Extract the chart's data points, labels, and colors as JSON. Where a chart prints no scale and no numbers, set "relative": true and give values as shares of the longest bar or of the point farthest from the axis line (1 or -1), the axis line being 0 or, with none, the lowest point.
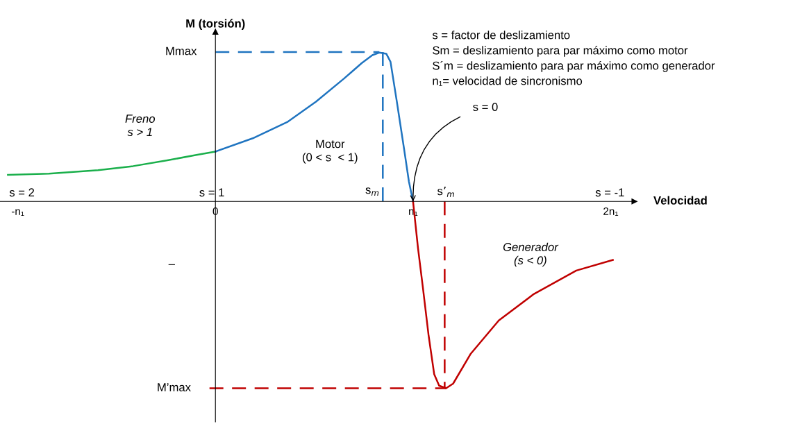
{
  "chart_data": {
    "type": "line",
    "relative": true,
    "title": "M (torsión)",
    "xlabel": "Velocidad",
    "xlim": [
      -1.09,
      2.12
    ],
    "xticks": [
      {
        "value": -1,
        "label": "-n₁"
      },
      0,
      {
        "value": 1,
        "label": "n₁"
      },
      {
        "value": 2,
        "label": "2n₁"
      }
    ],
    "tick_labels": "x",
    "marker": "none",
    "series": [
      {
        "color": "#1aaf4b",
        "line_style": "solid",
        "x": [
          -1.05,
          -0.843,
          -0.594,
          -0.416,
          -0.238,
          -0.096,
          0
        ],
        "values": [
          0.142,
          0.149,
          0.167,
          0.189,
          0.221,
          0.249,
          0.267
        ]
      },
      {
        "color": "#1f74c0",
        "line_style": "solid",
        "x": [
          0,
          0.189,
          0.367,
          0.509,
          0.651,
          0.74,
          0.794,
          0.829,
          0.865,
          0.886,
          0.918,
          0.954,
          0.979,
          1.0
        ],
        "values": [
          0.267,
          0.338,
          0.427,
          0.534,
          0.658,
          0.74,
          0.783,
          0.797,
          0.79,
          0.747,
          0.534,
          0.285,
          0.107,
          0
        ]
      },
      {
        "color": "#c00000",
        "line_style": "solid",
        "x": [
          1.0,
          1.025,
          1.05,
          1.078,
          1.107,
          1.132,
          1.167,
          1.203,
          1.292,
          1.434,
          1.612,
          1.826,
          2.011
        ],
        "values": [
          0,
          -0.249,
          -0.463,
          -0.712,
          -0.925,
          -0.986,
          -1.0,
          -0.975,
          -0.815,
          -0.637,
          -0.495,
          -0.37,
          -0.313
        ]
      },
      {
        "color": "#1f74c0",
        "line_style": "dashed",
        "x": [
          0,
          0.829
        ],
        "values": [
          0.8,
          0.8
        ]
      },
      {
        "color": "#1f74c0",
        "line_style": "dashed",
        "x": [
          0.847,
          0.847
        ],
        "values": [
          0.8,
          0
        ]
      },
      {
        "color": "#c00000",
        "line_style": "dashed",
        "x": [
          -0.03,
          1.167
        ],
        "values": [
          -1.0,
          -1.0
        ]
      },
      {
        "color": "#c00000",
        "line_style": "dashed",
        "x": [
          1.16,
          1.16
        ],
        "values": [
          0,
          -1.0
        ]
      }
    ],
    "annotations": [
      {
        "text": "s = 0",
        "x": 1,
        "y": 0
      },
      "Mmax",
      "M’max",
      "Freno\ns > 1",
      "Motor\n(0 < s  < 1)",
      "Generador\n(s < 0)",
      "s = 2",
      "s = 1",
      "s = -1",
      "s$_{m}$",
      "s’$_{m}$",
      "–",
      "s = factor de deslizamiento",
      "Sm = deslizamiento para par máximo como motor",
      "S´m = deslizamiento para par máximo como generador",
      "n₁= velocidad de sincronismo"
    ]
  }
}
